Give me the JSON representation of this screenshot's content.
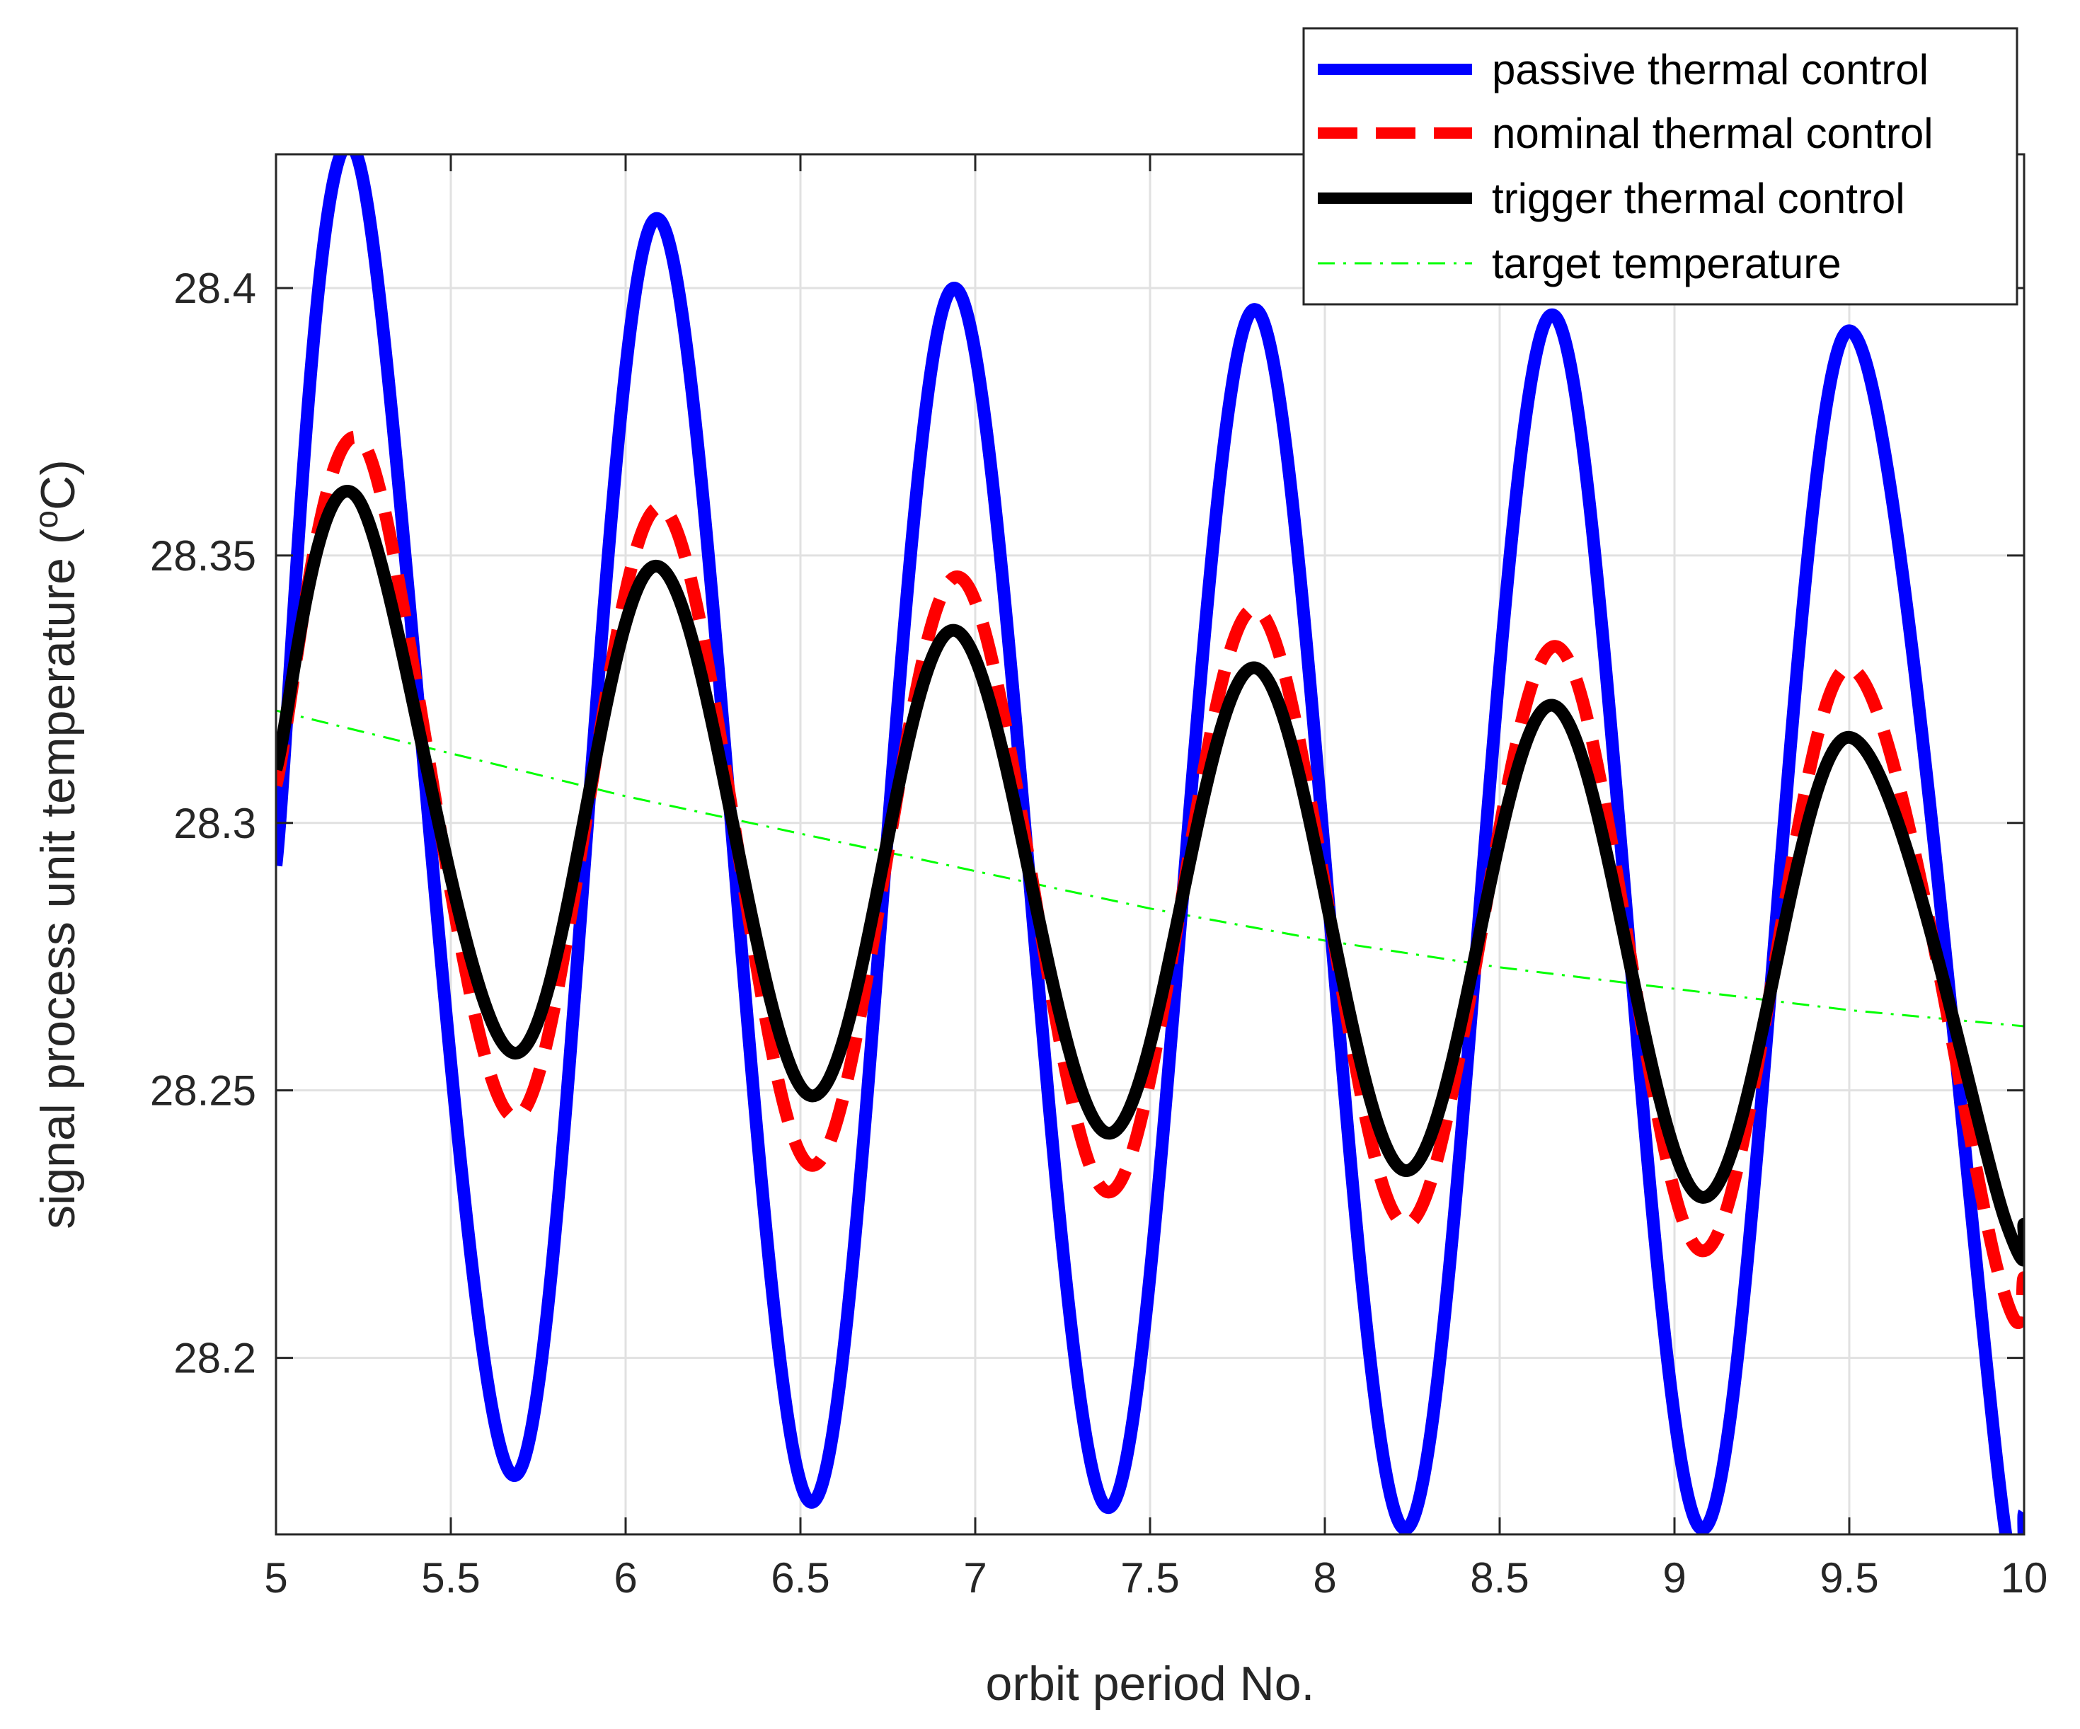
{
  "chart_data": {
    "type": "line",
    "title": "",
    "xlabel": "orbit period No.",
    "ylabel_main": "signal process unit temperature (",
    "ylabel_sup": "o",
    "ylabel_end": "C)",
    "xlim": [
      5,
      10
    ],
    "ylim": [
      28.167,
      28.425
    ],
    "xticks": [
      5,
      5.5,
      6,
      6.5,
      7,
      7.5,
      8,
      8.5,
      9,
      9.5,
      10
    ],
    "xtick_labels": [
      "5",
      "5.5",
      "6",
      "6.5",
      "7",
      "7.5",
      "8",
      "8.5",
      "9",
      "9.5",
      "10"
    ],
    "yticks": [
      28.2,
      28.25,
      28.3,
      28.35,
      28.4
    ],
    "ytick_labels": [
      "28.2",
      "28.25",
      "28.3",
      "28.35",
      "28.4"
    ],
    "grid": true,
    "legend_position": "top-right",
    "series": [
      {
        "name": "passive thermal control",
        "color": "#0000ff",
        "style": "solid-thick",
        "x": [
          5.0,
          5.23,
          5.68,
          6.09,
          6.53,
          6.94,
          7.38,
          7.8,
          8.23,
          8.65,
          9.08,
          9.5,
          9.95,
          10.0
        ],
        "values": [
          28.292,
          28.425,
          28.178,
          28.413,
          28.173,
          28.4,
          28.172,
          28.396,
          28.168,
          28.395,
          28.168,
          28.392,
          28.166,
          28.171
        ]
      },
      {
        "name": "nominal thermal control",
        "color": "#ff0000",
        "style": "dashed-thick",
        "x": [
          5.0,
          5.25,
          5.68,
          6.1,
          6.53,
          6.95,
          7.38,
          7.8,
          8.23,
          8.66,
          9.08,
          9.5,
          9.93,
          10.0
        ],
        "values": [
          28.307,
          28.371,
          28.245,
          28.359,
          28.236,
          28.346,
          28.231,
          28.34,
          28.225,
          28.333,
          28.22,
          28.329,
          28.215,
          28.215
        ]
      },
      {
        "name": "trigger thermal control",
        "color": "#000000",
        "style": "solid-thick",
        "x": [
          5.0,
          5.23,
          5.68,
          6.09,
          6.53,
          6.94,
          7.38,
          7.8,
          8.23,
          8.65,
          9.08,
          9.5,
          9.95,
          10.0
        ],
        "values": [
          28.31,
          28.361,
          28.257,
          28.348,
          28.249,
          28.336,
          28.242,
          28.329,
          28.235,
          28.322,
          28.23,
          28.316,
          28.225,
          28.225
        ]
      },
      {
        "name": "target temperature",
        "color": "#00ff00",
        "style": "dashdot-thin",
        "x": [
          5.0,
          5.5,
          6.0,
          6.5,
          7.0,
          7.5,
          8.0,
          8.5,
          9.0,
          9.5,
          10.0
        ],
        "values": [
          28.321,
          28.313,
          28.305,
          28.298,
          28.291,
          28.284,
          28.278,
          28.273,
          28.269,
          28.265,
          28.262
        ]
      }
    ]
  }
}
